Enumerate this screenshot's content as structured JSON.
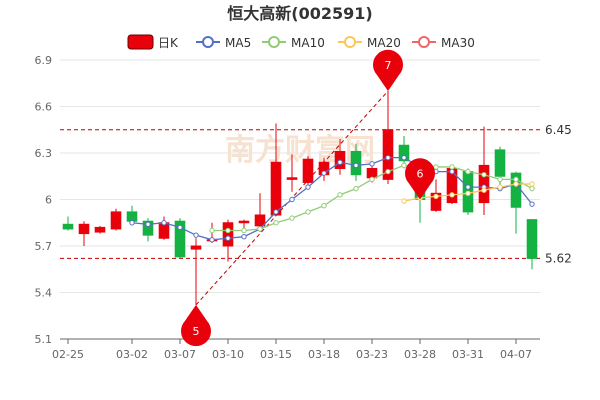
{
  "title": "恒大高新(002591)",
  "legend": [
    {
      "key": "kline",
      "label": "日K",
      "color": "#d9001b",
      "kind": "box"
    },
    {
      "key": "ma5",
      "label": "MA5",
      "color": "#5470c6",
      "kind": "line"
    },
    {
      "key": "ma10",
      "label": "MA10",
      "color": "#91cc75",
      "kind": "line"
    },
    {
      "key": "ma20",
      "label": "MA20",
      "color": "#fac858",
      "kind": "line"
    },
    {
      "key": "ma30",
      "label": "MA30",
      "color": "#ee6666",
      "kind": "line"
    }
  ],
  "watermark": "南方财富网",
  "colors": {
    "up": "#e8000b",
    "down": "#14b143",
    "ref_line": "#c00000",
    "marker": "#e8000b",
    "grid": "#e6e6e6",
    "axis": "#666666"
  },
  "chart_data": {
    "type": "candlestick",
    "title": "恒大高新(002591)",
    "ylim": [
      5.1,
      6.9
    ],
    "yticks": [
      "5.1",
      "5.4",
      "5.7",
      "6",
      "6.3",
      "6.6",
      "6.9"
    ],
    "xtick_labels": [
      {
        "index": 0,
        "label": "02-25"
      },
      {
        "index": 4,
        "label": "03-02"
      },
      {
        "index": 7,
        "label": "03-07"
      },
      {
        "index": 10,
        "label": "03-10"
      },
      {
        "index": 13,
        "label": "03-15"
      },
      {
        "index": 16,
        "label": "03-18"
      },
      {
        "index": 19,
        "label": "03-23"
      },
      {
        "index": 22,
        "label": "03-28"
      },
      {
        "index": 25,
        "label": "03-31"
      },
      {
        "index": 28,
        "label": "04-07"
      }
    ],
    "candles": [
      {
        "open": 5.84,
        "close": 5.81,
        "high": 5.89,
        "low": 5.8
      },
      {
        "open": 5.78,
        "close": 5.84,
        "high": 5.86,
        "low": 5.7
      },
      {
        "open": 5.79,
        "close": 5.82,
        "high": 5.83,
        "low": 5.78
      },
      {
        "open": 5.81,
        "close": 5.92,
        "high": 5.94,
        "low": 5.8
      },
      {
        "open": 5.92,
        "close": 5.86,
        "high": 5.96,
        "low": 5.85
      },
      {
        "open": 5.86,
        "close": 5.77,
        "high": 5.88,
        "low": 5.73
      },
      {
        "open": 5.75,
        "close": 5.85,
        "high": 5.89,
        "low": 5.74
      },
      {
        "open": 5.86,
        "close": 5.63,
        "high": 5.88,
        "low": 5.62
      },
      {
        "open": 5.68,
        "close": 5.7,
        "high": 5.75,
        "low": 5.32
      },
      {
        "open": 5.74,
        "close": 5.74,
        "high": 5.85,
        "low": 5.72
      },
      {
        "open": 5.7,
        "close": 5.85,
        "high": 5.87,
        "low": 5.6
      },
      {
        "open": 5.85,
        "close": 5.86,
        "high": 5.87,
        "low": 5.8
      },
      {
        "open": 5.83,
        "close": 5.9,
        "high": 6.04,
        "low": 5.79
      },
      {
        "open": 5.9,
        "close": 6.24,
        "high": 6.49,
        "low": 5.9
      },
      {
        "open": 6.13,
        "close": 6.14,
        "high": 6.29,
        "low": 6.05
      },
      {
        "open": 6.11,
        "close": 6.26,
        "high": 6.28,
        "low": 6.07
      },
      {
        "open": 6.16,
        "close": 6.24,
        "high": 6.27,
        "low": 6.12
      },
      {
        "open": 6.2,
        "close": 6.31,
        "high": 6.39,
        "low": 6.16
      },
      {
        "open": 6.31,
        "close": 6.16,
        "high": 6.36,
        "low": 6.12
      },
      {
        "open": 6.14,
        "close": 6.2,
        "high": 6.22,
        "low": 6.11
      },
      {
        "open": 6.13,
        "close": 6.45,
        "high": 6.7,
        "low": 6.1
      },
      {
        "open": 6.35,
        "close": 6.25,
        "high": 6.41,
        "low": 6.2
      },
      {
        "open": 6.14,
        "close": 6.0,
        "high": 6.17,
        "low": 5.85
      },
      {
        "open": 5.93,
        "close": 6.04,
        "high": 6.13,
        "low": 5.92
      },
      {
        "open": 5.98,
        "close": 6.2,
        "high": 6.22,
        "low": 5.97
      },
      {
        "open": 6.18,
        "close": 5.92,
        "high": 6.2,
        "low": 5.9
      },
      {
        "open": 5.98,
        "close": 6.22,
        "high": 6.47,
        "low": 5.9
      },
      {
        "open": 6.32,
        "close": 6.15,
        "high": 6.34,
        "low": 6.06
      },
      {
        "open": 6.17,
        "close": 5.95,
        "high": 6.18,
        "low": 5.78
      },
      {
        "open": 5.87,
        "close": 5.62,
        "high": 5.87,
        "low": 5.55
      }
    ],
    "series": [
      {
        "name": "MA5",
        "values": [
          null,
          null,
          null,
          null,
          5.85,
          5.84,
          5.85,
          5.82,
          5.77,
          5.74,
          5.75,
          5.76,
          5.81,
          5.92,
          6.0,
          6.08,
          6.17,
          6.24,
          6.22,
          6.23,
          6.27,
          6.27,
          6.21,
          6.18,
          6.18,
          6.08,
          6.08,
          6.07,
          6.1,
          5.97
        ]
      },
      {
        "name": "MA10",
        "values": [
          null,
          null,
          null,
          null,
          null,
          null,
          null,
          null,
          null,
          5.8,
          5.8,
          5.8,
          5.81,
          5.85,
          5.88,
          5.92,
          5.96,
          6.03,
          6.07,
          6.13,
          6.18,
          6.22,
          6.21,
          6.21,
          6.21,
          6.18,
          6.16,
          6.13,
          6.13,
          6.07
        ]
      },
      {
        "name": "MA20",
        "values": [
          null,
          null,
          null,
          null,
          null,
          null,
          null,
          null,
          null,
          null,
          null,
          null,
          null,
          null,
          null,
          null,
          null,
          null,
          null,
          null,
          null,
          5.99,
          6.01,
          6.02,
          6.03,
          6.04,
          6.06,
          6.08,
          6.1,
          6.1
        ]
      },
      {
        "name": "MA30",
        "values": []
      }
    ],
    "reference_lines": [
      {
        "value": 6.45,
        "label": "6.45"
      },
      {
        "value": 5.62,
        "label": "5.62"
      }
    ],
    "markers": [
      {
        "index": 8,
        "value": 5.32,
        "label": "5",
        "position": "below"
      },
      {
        "index": 20,
        "value": 6.7,
        "label": "7",
        "position": "above"
      },
      {
        "index": 22,
        "value": 6.0,
        "label": "6",
        "position": "above"
      }
    ],
    "trend_line": {
      "from_index": 8,
      "from_value": 5.32,
      "to_index": 20,
      "to_value": 6.7
    }
  }
}
